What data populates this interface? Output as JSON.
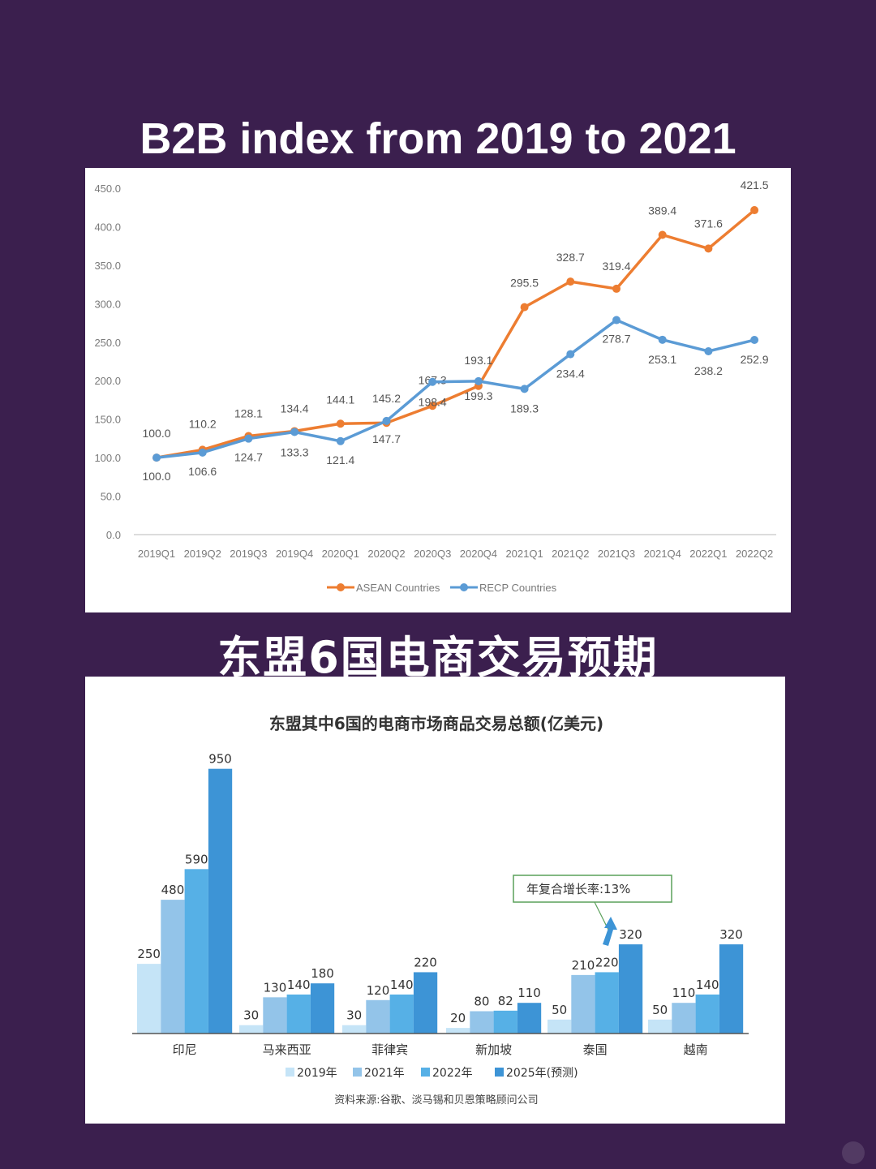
{
  "title1": "B2B index from 2019 to 2021",
  "title2": "东盟6国电商交易预期",
  "chart_data": [
    {
      "type": "line",
      "x": [
        "2019Q1",
        "2019Q2",
        "2019Q3",
        "2019Q4",
        "2020Q1",
        "2020Q2",
        "2020Q3",
        "2020Q4",
        "2021Q1",
        "2021Q2",
        "2021Q3",
        "2021Q4",
        "2022Q1",
        "2022Q2"
      ],
      "ylim": [
        0,
        450
      ],
      "yticks": [
        "0.0",
        "50.0",
        "100.0",
        "150.0",
        "200.0",
        "250.0",
        "300.0",
        "350.0",
        "400.0",
        "450.0"
      ],
      "grid": false,
      "legend_position": "bottom",
      "series": [
        {
          "name": "ASEAN Countries",
          "color": "#ed7d31",
          "values": [
            100.0,
            110.2,
            128.1,
            134.4,
            144.1,
            145.2,
            167.3,
            193.1,
            295.5,
            328.7,
            319.4,
            389.4,
            371.6,
            421.5
          ],
          "labels": [
            "100.0",
            "110.2",
            "128.1",
            "134.4",
            "144.1",
            "145.2",
            "167.3",
            "193.1",
            "295.5",
            "328.7",
            "319.4",
            "389.4",
            "371.6",
            "421.5"
          ]
        },
        {
          "name": "RECP  Countries",
          "color": "#5b9bd5",
          "values": [
            100.0,
            106.6,
            124.7,
            133.3,
            121.4,
            147.7,
            198.4,
            199.3,
            189.3,
            234.4,
            278.7,
            253.1,
            238.2,
            252.9
          ],
          "labels": [
            "100.0",
            "106.6",
            "124.7",
            "133.3",
            "121.4",
            "147.7",
            "198.4",
            "199.3",
            "189.3",
            "234.4",
            "278.7",
            "253.1",
            "238.2",
            "252.9"
          ]
        }
      ]
    },
    {
      "type": "bar",
      "title": "东盟其中6国的电商市场商品交易总额(亿美元)",
      "categories": [
        "印尼",
        "马来西亚",
        "菲律宾",
        "新加坡",
        "泰国",
        "越南"
      ],
      "ylim": [
        0,
        1000
      ],
      "legend_position": "bottom",
      "series": [
        {
          "name": "2019年",
          "color": "#c5e4f7",
          "values": [
            250,
            30,
            30,
            20,
            50,
            50
          ]
        },
        {
          "name": "2021年",
          "color": "#93c4e9",
          "values": [
            480,
            130,
            120,
            80,
            210,
            110
          ]
        },
        {
          "name": "2022年",
          "color": "#56b0e6",
          "values": [
            590,
            140,
            140,
            82,
            220,
            140
          ]
        },
        {
          "name": "2025年(预测)",
          "color": "#3d94d6",
          "values": [
            950,
            180,
            220,
            110,
            320,
            320
          ]
        }
      ],
      "annotation": "年复合增长率:13%",
      "annotation_color": "#3d94d6",
      "source": "资料来源:谷歌、淡马锡和贝恩策略顾问公司"
    }
  ]
}
